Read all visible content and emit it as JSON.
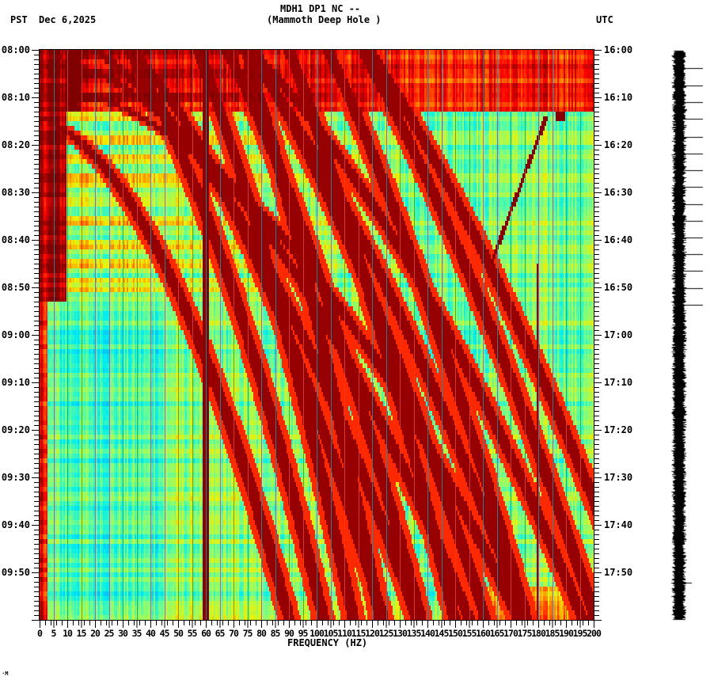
{
  "header": {
    "station_line": "MDH1 DP1 NC --",
    "location_line": "(Mammoth Deep Hole )",
    "left_timezone": "PST",
    "date": "Dec 6,2025",
    "right_timezone": "UTC"
  },
  "footer": {
    "xlabel": "FREQUENCY (HZ)",
    "corner_mark": "·M"
  },
  "chart_data": {
    "type": "heatmap",
    "title": "MDH1 DP1 NC -- (Mammoth Deep Hole )",
    "subtitle": "PST Dec 6,2025 / UTC",
    "xlabel": "FREQUENCY (HZ)",
    "ylabel_left": "PST",
    "ylabel_right": "UTC",
    "xlim": [
      0,
      200
    ],
    "x_ticks": [
      0,
      5,
      10,
      15,
      20,
      25,
      30,
      35,
      40,
      45,
      50,
      55,
      60,
      65,
      70,
      75,
      80,
      85,
      90,
      95,
      100,
      105,
      110,
      115,
      120,
      125,
      130,
      135,
      140,
      145,
      150,
      155,
      160,
      165,
      170,
      175,
      180,
      185,
      190,
      195,
      200
    ],
    "y_ticks_left": [
      "08:00",
      "08:10",
      "08:20",
      "08:30",
      "08:40",
      "08:50",
      "09:00",
      "09:10",
      "09:20",
      "09:30",
      "09:40",
      "09:50"
    ],
    "y_ticks_right": [
      "16:00",
      "16:10",
      "16:20",
      "16:30",
      "16:40",
      "16:50",
      "17:00",
      "17:10",
      "17:20",
      "17:30",
      "17:40",
      "17:50"
    ],
    "time_range_minutes": 120,
    "colormap": [
      "#00a0ff",
      "#00f0f0",
      "#7fff7f",
      "#f0f000",
      "#ff8000",
      "#ff0000",
      "#800000"
    ],
    "features": {
      "persistent_line_hz": 60,
      "persistent_line_2_hz": 180,
      "high_energy_period_pst": "08:00-08:53",
      "low_freq_quiet_band_hz": [
        20,
        45
      ],
      "chirp_curves": "multiple curved harmonic streaks rising in frequency over time (dark red)",
      "diagonal_streak": {
        "start_hz": 163,
        "start_time": "08:45",
        "end_hz": 183,
        "end_time": "08:14"
      },
      "broadband_noise_rows": [
        "08:00-08:13 (red, 0-200 Hz)",
        "09:53-10:00 (yellow/red, 150-200 Hz)"
      ]
    }
  },
  "seismogram": {
    "label": "waveform trace",
    "spike_minutes": [
      2,
      5.7,
      9.2,
      12.7,
      16.5,
      20,
      23.5,
      27,
      30.5,
      34,
      37.5,
      41,
      44.5,
      48.2,
      51.7
    ]
  }
}
